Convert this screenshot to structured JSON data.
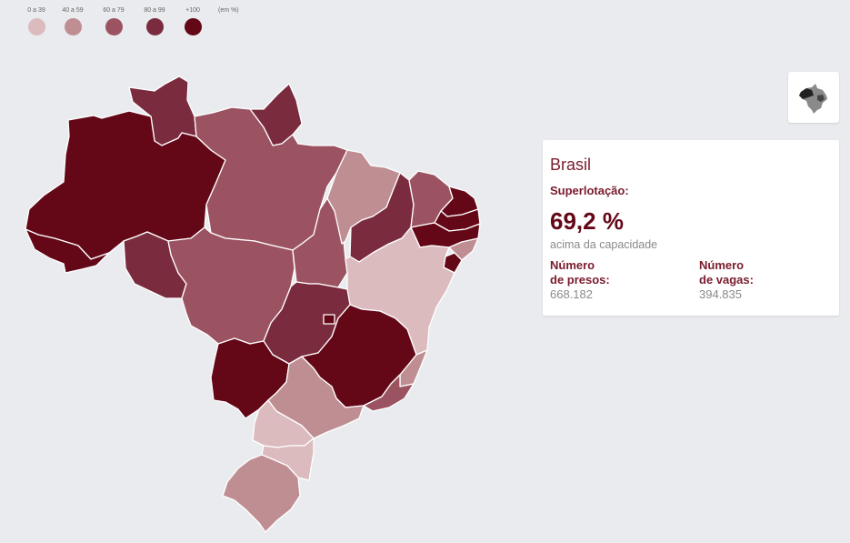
{
  "legend": {
    "items": [
      {
        "label": "0 a 39",
        "color": "#dbbbbe"
      },
      {
        "label": "40 a 59",
        "color": "#bf8e93"
      },
      {
        "label": "60 a 79",
        "color": "#9c5361"
      },
      {
        "label": "80 a 99",
        "color": "#7b2b3e"
      },
      {
        "label": "+100",
        "color": "#640818"
      }
    ],
    "unit": "(em %)"
  },
  "mini_map_icon": "brazil-mini-map-icon",
  "info_card": {
    "title": "Brasil",
    "metric_label": "Superlotação:",
    "metric_value": "69,2 %",
    "metric_description": "acima da capacidade",
    "prisoners_label": "Número\nde presos:",
    "prisoners_value": "668.182",
    "vacancies_label": "Número\nde vagas:",
    "vacancies_value": "394.835"
  },
  "map_colors": {
    "c0": "#dbbbbe",
    "c1": "#bf8e93",
    "c2": "#9c5361",
    "c3": "#7b2b3e",
    "c4": "#640818"
  }
}
